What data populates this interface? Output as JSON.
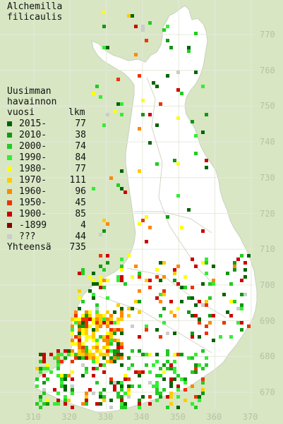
{
  "title": {
    "line1": "Alchemilla",
    "line2": "filicaulis"
  },
  "legend": {
    "header1": "Uusimman",
    "header2": "havainnon",
    "col_year": "vuosi",
    "col_count": "lkm",
    "items": [
      {
        "label": "2015-",
        "count": "77",
        "color": "#006400"
      },
      {
        "label": "2010-",
        "count": "38",
        "color": "#119911"
      },
      {
        "label": "2000-",
        "count": "74",
        "color": "#22cc22"
      },
      {
        "label": "1990-",
        "count": "84",
        "color": "#33ee33"
      },
      {
        "label": "1980-",
        "count": "77",
        "color": "#ffff00"
      },
      {
        "label": "1970-",
        "count": "111",
        "color": "#ffcc00"
      },
      {
        "label": "1960-",
        "count": "96",
        "color": "#ff8800"
      },
      {
        "label": "1950-",
        "count": "45",
        "color": "#ee3300"
      },
      {
        "label": "1900-",
        "count": "85",
        "color": "#cc0000"
      },
      {
        "label": "-1899",
        "count": "4",
        "color": "#880000"
      },
      {
        "label": "???",
        "count": "44",
        "color": "#cccccc"
      }
    ],
    "total_label": "Yhteensä",
    "total": "735"
  },
  "y_axis_labels": [
    "770",
    "760",
    "750",
    "740",
    "730",
    "720",
    "710",
    "700",
    "690",
    "680",
    "670"
  ],
  "x_axis_labels": [
    "310",
    "320",
    "330",
    "340",
    "350",
    "360",
    "370"
  ],
  "map": {
    "land_color": "#ffffff",
    "sea_color": "#d8e6c4",
    "grid_color": "#e0e0d0",
    "border_color": "#cfd7c2"
  }
}
